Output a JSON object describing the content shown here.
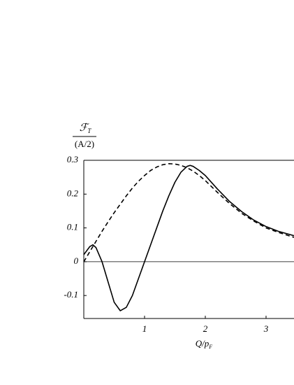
{
  "chart_data": {
    "type": "line",
    "ylabel": {
      "symbol": "ℱ",
      "subscript": "T",
      "denominator": "(A/2)"
    },
    "xlabel": {
      "symbol": "Q/p",
      "subscript": "F"
    },
    "x": [
      0,
      0.1,
      0.15,
      0.2,
      0.3,
      0.4,
      0.5,
      0.6,
      0.7,
      0.8,
      0.9,
      1.0,
      1.1,
      1.2,
      1.3,
      1.4,
      1.5,
      1.6,
      1.7,
      1.75,
      1.8,
      1.9,
      2.0,
      2.2,
      2.4,
      2.6,
      2.8,
      3.0,
      3.2,
      3.46
    ],
    "series": [
      {
        "color": "#000000",
        "dashed": false,
        "values": [
          0.021,
          0.045,
          0.05,
          0.042,
          0.0,
          -0.06,
          -0.12,
          -0.145,
          -0.135,
          -0.1,
          -0.05,
          0.0,
          0.05,
          0.1,
          0.15,
          0.195,
          0.235,
          0.265,
          0.282,
          0.285,
          0.282,
          0.27,
          0.255,
          0.215,
          0.178,
          0.148,
          0.123,
          0.104,
          0.09,
          0.077
        ]
      },
      {
        "color": "#000000",
        "dashed": true,
        "values": [
          0.0,
          0.03,
          0.045,
          0.06,
          0.09,
          0.118,
          0.145,
          0.17,
          0.195,
          0.218,
          0.238,
          0.255,
          0.27,
          0.28,
          0.287,
          0.29,
          0.289,
          0.285,
          0.278,
          0.273,
          0.268,
          0.255,
          0.24,
          0.205,
          0.172,
          0.143,
          0.12,
          0.1,
          0.087,
          0.072
        ]
      }
    ],
    "xlim": [
      0,
      3.46
    ],
    "ylim": [
      -0.168,
      0.3
    ],
    "xticks": [
      1,
      2,
      3
    ],
    "yticks": [
      -0.1,
      0,
      0.1,
      0.2,
      0.3
    ],
    "zero_line": true
  }
}
